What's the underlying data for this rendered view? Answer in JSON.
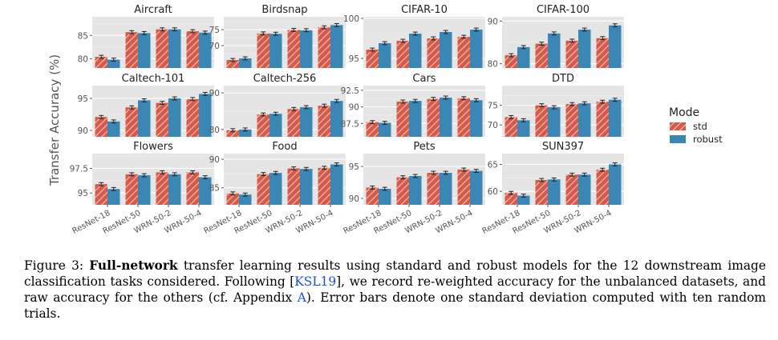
{
  "chart_data": {
    "type": "bar",
    "layout": "facet-grid-3x4",
    "ylabel": "Transfer Accuracy (%)",
    "categories": [
      "ResNet-18",
      "ResNet-50",
      "WRN-50-2",
      "WRN-50-4"
    ],
    "legend": {
      "title": "Mode",
      "placement": "right",
      "entries": [
        {
          "name": "std",
          "color": "#d65a4a",
          "hatched": true
        },
        {
          "name": "robust",
          "color": "#3a87b6",
          "hatched": false
        }
      ]
    },
    "panels": [
      {
        "title": "Aircraft",
        "ylim": [
          78,
          89
        ],
        "yticks": [
          80,
          85
        ],
        "series": {
          "std": [
            80.4,
            85.7,
            86.3,
            85.9
          ],
          "robust": [
            79.8,
            85.5,
            86.3,
            85.6
          ]
        }
      },
      {
        "title": "Birdsnap",
        "ylim": [
          63,
          79
        ],
        "yticks": [
          70,
          75
        ],
        "series": {
          "std": [
            65.5,
            73.8,
            74.9,
            75.7
          ],
          "robust": [
            66.0,
            73.7,
            74.8,
            76.4
          ]
        }
      },
      {
        "title": "CIFAR-10",
        "ylim": [
          93.8,
          100.2
        ],
        "yticks": [
          95,
          100
        ],
        "series": {
          "std": [
            96.1,
            97.2,
            97.5,
            97.7
          ],
          "robust": [
            96.9,
            98.1,
            98.3,
            98.6
          ]
        }
      },
      {
        "title": "CIFAR-100",
        "ylim": [
          79,
          91
        ],
        "yticks": [
          80,
          90
        ],
        "series": {
          "std": [
            82.0,
            84.7,
            85.4,
            86.0
          ],
          "robust": [
            83.9,
            87.1,
            88.0,
            89.0
          ]
        }
      },
      {
        "title": "Caltech-101",
        "ylim": [
          89,
          97
        ],
        "yticks": [
          90,
          95
        ],
        "series": {
          "std": [
            92.1,
            93.6,
            94.3,
            94.9
          ],
          "robust": [
            91.4,
            94.7,
            95.0,
            95.7
          ]
        }
      },
      {
        "title": "Caltech-256",
        "ylim": [
          78,
          92
        ],
        "yticks": [
          80,
          90
        ],
        "series": {
          "std": [
            79.8,
            84.1,
            85.6,
            86.5
          ],
          "robust": [
            80.0,
            84.3,
            86.1,
            87.8
          ]
        }
      },
      {
        "title": "Cars",
        "ylim": [
          85.5,
          93.2
        ],
        "yticks": [
          87.5,
          90.0,
          92.5
        ],
        "series": {
          "std": [
            87.7,
            90.8,
            91.2,
            91.3
          ],
          "robust": [
            87.6,
            90.9,
            91.4,
            91.0
          ]
        }
      },
      {
        "title": "DTD",
        "ylim": [
          67,
          80
        ],
        "yticks": [
          70,
          75
        ],
        "series": {
          "std": [
            72.0,
            75.0,
            75.3,
            75.9
          ],
          "robust": [
            71.2,
            74.5,
            75.5,
            76.4
          ]
        }
      },
      {
        "title": "Flowers",
        "ylim": [
          93.8,
          99
        ],
        "yticks": [
          95.0,
          97.5
        ],
        "series": {
          "std": [
            95.9,
            96.9,
            97.1,
            97.1
          ],
          "robust": [
            95.4,
            96.8,
            96.9,
            96.6
          ]
        }
      },
      {
        "title": "Food",
        "ylim": [
          82,
          91
        ],
        "yticks": [
          85,
          90
        ],
        "series": {
          "std": [
            84.0,
            87.4,
            88.4,
            88.5
          ],
          "robust": [
            83.8,
            87.6,
            88.3,
            89.1
          ]
        }
      },
      {
        "title": "Pets",
        "ylim": [
          89,
          97
        ],
        "yticks": [
          90,
          95
        ],
        "series": {
          "std": [
            91.7,
            93.3,
            94.0,
            94.5
          ],
          "robust": [
            91.5,
            93.5,
            94.0,
            94.3
          ]
        }
      },
      {
        "title": "SUN397",
        "ylim": [
          57.5,
          67
        ],
        "yticks": [
          60,
          65
        ],
        "series": {
          "std": [
            59.7,
            62.1,
            63.1,
            64.0
          ],
          "robust": [
            59.2,
            62.2,
            63.1,
            65.0
          ]
        }
      }
    ],
    "error_spread": 0.3
  },
  "caption": {
    "label": "Figure 3: ",
    "bold": "Full-network",
    "part1": " transfer learning results using standard and robust models for the 12 downstream image classification tasks considered. Following [",
    "cite1": "KSL19",
    "part2": "], we record re-weighted accuracy for the unbalanced datasets, and raw accuracy for the others (cf. Appendix ",
    "cite2": "A",
    "part3": "). Error bars denote one standard deviation computed with ten random trials."
  }
}
